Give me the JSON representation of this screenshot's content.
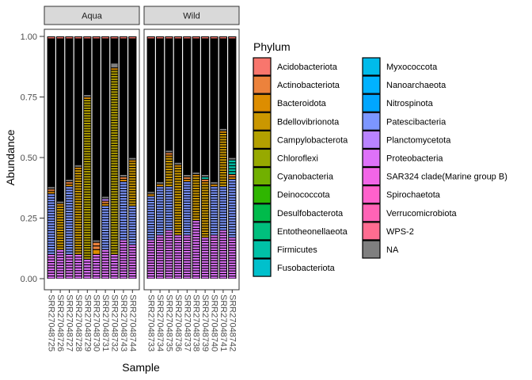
{
  "chart_data": {
    "type": "bar",
    "subtype": "stacked",
    "xlabel": "Sample",
    "ylabel": "Abundance",
    "ylim": [
      0,
      1
    ],
    "y_ticks": [
      "0.00",
      "0.25",
      "0.50",
      "0.75",
      "1.00"
    ],
    "grid": false,
    "legend_position": "right",
    "legend_title": "Phylum",
    "bar_outline_color": "#000000",
    "panels": [
      {
        "label": "Aqua",
        "samples": [
          "SRR27048725",
          "SRR27048726",
          "SRR27048727",
          "SRR27048728",
          "SRR27048729",
          "SRR27048730",
          "SRR27048731",
          "SRR27048732",
          "SRR27048743",
          "SRR27048744"
        ]
      },
      {
        "label": "Wild",
        "samples": [
          "SRR27048733",
          "SRR27048734",
          "SRR27048735",
          "SRR27048736",
          "SRR27048737",
          "SRR27048738",
          "SRR27048739",
          "SRR27048740",
          "SRR27048741",
          "SRR27048742"
        ]
      }
    ],
    "phyla": [
      {
        "name": "Acidobacteriota",
        "color": "#F8766D"
      },
      {
        "name": "Actinobacteriota",
        "color": "#EC823C"
      },
      {
        "name": "Bacteroidota",
        "color": "#DD8D00"
      },
      {
        "name": "Bdellovibrionota",
        "color": "#CA9700"
      },
      {
        "name": "Campylobacterota",
        "color": "#B3A000"
      },
      {
        "name": "Chloroflexi",
        "color": "#97A900"
      },
      {
        "name": "Cyanobacteria",
        "color": "#71B000"
      },
      {
        "name": "Deinococcota",
        "color": "#2FB600"
      },
      {
        "name": "Desulfobacterota",
        "color": "#00BB4B"
      },
      {
        "name": "Entotheonellaeota",
        "color": "#00BF7D"
      },
      {
        "name": "Firmicutes",
        "color": "#00C1A7"
      },
      {
        "name": "Fusobacteriota",
        "color": "#00C0CC"
      },
      {
        "name": "Myxococcota",
        "color": "#00BBEA"
      },
      {
        "name": "Nanoarchaeota",
        "color": "#00B2FF"
      },
      {
        "name": "Nitrospinota",
        "color": "#00A6FF"
      },
      {
        "name": "Patescibacteria",
        "color": "#7C96FF"
      },
      {
        "name": "Planctomycetota",
        "color": "#B983FF"
      },
      {
        "name": "Proteobacteria",
        "color": "#DE71F9"
      },
      {
        "name": "SAR324 clade(Marine group B)",
        "color": "#F265E7"
      },
      {
        "name": "Spirochaetota",
        "color": "#FF61CC"
      },
      {
        "name": "Verrucomicrobiota",
        "color": "#FF63B6"
      },
      {
        "name": "WPS-2",
        "color": "#FF6C91"
      },
      {
        "name": "NA",
        "color": "#7F7F7F"
      }
    ],
    "series": [
      {
        "name": "Proteobacteria",
        "values": [
          0.1,
          0.12,
          0.1,
          0.1,
          0.08,
          0.1,
          0.12,
          0.1,
          0.16,
          0.14,
          0.16,
          0.18,
          0.2,
          0.18,
          0.18,
          0.24,
          0.17,
          0.18,
          0.2,
          0.17
        ]
      },
      {
        "name": "Campylobacterota",
        "values": [
          0.0,
          0.0,
          0.0,
          0.0,
          0.66,
          0.0,
          0.0,
          0.76,
          0.0,
          0.0,
          0.0,
          0.0,
          0.0,
          0.0,
          0.0,
          0.0,
          0.0,
          0.0,
          0.0,
          0.0
        ]
      },
      {
        "name": "Patescibacteria",
        "values": [
          0.25,
          0.0,
          0.28,
          0.0,
          0.0,
          0.0,
          0.18,
          0.0,
          0.24,
          0.16,
          0.18,
          0.2,
          0.18,
          0.0,
          0.22,
          0.0,
          0.0,
          0.2,
          0.18,
          0.24
        ]
      },
      {
        "name": "Bdellovibrionota",
        "values": [
          0.0,
          0.18,
          0.0,
          0.35,
          0.0,
          0.0,
          0.0,
          0.0,
          0.0,
          0.18,
          0.0,
          0.0,
          0.12,
          0.28,
          0.0,
          0.18,
          0.22,
          0.0,
          0.22,
          0.0
        ]
      },
      {
        "name": "Bacteroidota",
        "values": [
          0.01,
          0.01,
          0.01,
          0.01,
          0.01,
          0.02,
          0.01,
          0.01,
          0.01,
          0.01,
          0.01,
          0.01,
          0.01,
          0.01,
          0.01,
          0.01,
          0.01,
          0.01,
          0.01,
          0.01
        ]
      },
      {
        "name": "Actinobacteriota",
        "values": [
          0.01,
          0.0,
          0.01,
          0.0,
          0.0,
          0.03,
          0.01,
          0.0,
          0.01,
          0.0,
          0.0,
          0.0,
          0.01,
          0.0,
          0.01,
          0.0,
          0.01,
          0.0,
          0.0,
          0.01
        ]
      },
      {
        "name": "Firmicutes",
        "values": [
          0.0,
          0.0,
          0.0,
          0.0,
          0.0,
          0.0,
          0.0,
          0.0,
          0.0,
          0.0,
          0.0,
          0.0,
          0.0,
          0.0,
          0.0,
          0.0,
          0.01,
          0.0,
          0.0,
          0.06
        ]
      },
      {
        "name": "Planctomycetota",
        "values": [
          0.0,
          0.0,
          0.0,
          0.0,
          0.0,
          0.0,
          0.01,
          0.0,
          0.0,
          0.0,
          0.0,
          0.0,
          0.0,
          0.0,
          0.0,
          0.0,
          0.0,
          0.0,
          0.0,
          0.0
        ]
      },
      {
        "name": "NA",
        "values": [
          0.01,
          0.01,
          0.01,
          0.01,
          0.01,
          0.01,
          0.01,
          0.02,
          0.01,
          0.01,
          0.01,
          0.01,
          0.01,
          0.01,
          0.01,
          0.01,
          0.01,
          0.01,
          0.01,
          0.01
        ]
      }
    ]
  }
}
